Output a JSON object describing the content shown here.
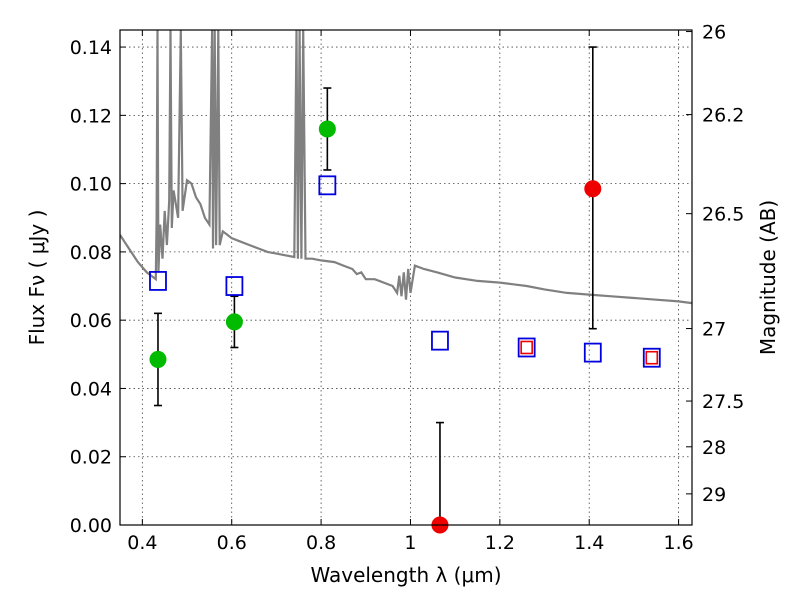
{
  "chart_data": {
    "type": "scatter",
    "title": "",
    "xlabel": "Wavelength  λ (μm)",
    "ylabel": "Flux  Fν  ( μJy )",
    "ylabel_right": "Magnitude (AB)",
    "xlim": [
      0.35,
      1.63
    ],
    "ylim": [
      0,
      0.145
    ],
    "grid": true,
    "legend": "none",
    "x_ticks": [
      {
        "value": 0.4,
        "label": "0.4"
      },
      {
        "value": 0.6,
        "label": "0.6"
      },
      {
        "value": 0.8,
        "label": "0.8"
      },
      {
        "value": 1.0,
        "label": "1"
      },
      {
        "value": 1.2,
        "label": "1.2"
      },
      {
        "value": 1.4,
        "label": "1.4"
      },
      {
        "value": 1.6,
        "label": "1.6"
      }
    ],
    "y_ticks": [
      {
        "value": 0.0,
        "label": "0.00"
      },
      {
        "value": 0.02,
        "label": "0.02"
      },
      {
        "value": 0.04,
        "label": "0.04"
      },
      {
        "value": 0.06,
        "label": "0.06"
      },
      {
        "value": 0.08,
        "label": "0.08"
      },
      {
        "value": 0.1,
        "label": "0.10"
      },
      {
        "value": 0.12,
        "label": "0.12"
      },
      {
        "value": 0.14,
        "label": "0.14"
      }
    ],
    "right_ticks": [
      {
        "label": "26",
        "mag": 26.0
      },
      {
        "label": "26.2",
        "mag": 26.2
      },
      {
        "label": "26.5",
        "mag": 26.5
      },
      {
        "label": "27",
        "mag": 27.0
      },
      {
        "label": "27.5",
        "mag": 27.5
      },
      {
        "label": "28",
        "mag": 28.0
      },
      {
        "label": "29",
        "mag": 29.0
      }
    ],
    "series": [
      {
        "marker": "circle",
        "color": "#00bb00",
        "points": [
          {
            "x": 0.435,
            "y": 0.0485,
            "ylo": 0.035,
            "yhi": 0.062
          },
          {
            "x": 0.606,
            "y": 0.0595,
            "ylo": 0.052,
            "yhi": 0.067
          },
          {
            "x": 0.814,
            "y": 0.116,
            "ylo": 0.104,
            "yhi": 0.128
          }
        ]
      },
      {
        "marker": "circle",
        "color": "#ee0000",
        "points": [
          {
            "x": 1.066,
            "y": 0.0,
            "ylo": 0.0,
            "yhi": 0.03
          },
          {
            "x": 1.408,
            "y": 0.0985,
            "ylo": 0.0575,
            "yhi": 0.14
          }
        ]
      },
      {
        "marker": "square-open",
        "color": "#0000dd",
        "points": [
          {
            "x": 0.435,
            "y": 0.0715
          },
          {
            "x": 0.606,
            "y": 0.07
          },
          {
            "x": 0.814,
            "y": 0.0995
          },
          {
            "x": 1.066,
            "y": 0.054
          },
          {
            "x": 1.26,
            "y": 0.052
          },
          {
            "x": 1.408,
            "y": 0.0505
          },
          {
            "x": 1.54,
            "y": 0.049
          }
        ]
      },
      {
        "marker": "square-open-small",
        "color": "#ee0000",
        "points": [
          {
            "x": 1.26,
            "y": 0.052
          },
          {
            "x": 1.54,
            "y": 0.049
          }
        ]
      },
      {
        "marker": "line",
        "color": "#808080",
        "points": [
          {
            "x": 0.35,
            "y": 0.085
          },
          {
            "x": 0.37,
            "y": 0.081
          },
          {
            "x": 0.39,
            "y": 0.077
          },
          {
            "x": 0.41,
            "y": 0.074
          },
          {
            "x": 0.42,
            "y": 0.073
          },
          {
            "x": 0.43,
            "y": 0.072
          },
          {
            "x": 0.432,
            "y": 0.09
          },
          {
            "x": 0.434,
            "y": 0.145
          },
          {
            "x": 0.436,
            "y": 0.074
          },
          {
            "x": 0.44,
            "y": 0.088
          },
          {
            "x": 0.445,
            "y": 0.078
          },
          {
            "x": 0.45,
            "y": 0.092
          },
          {
            "x": 0.455,
            "y": 0.082
          },
          {
            "x": 0.46,
            "y": 0.095
          },
          {
            "x": 0.463,
            "y": 0.145
          },
          {
            "x": 0.466,
            "y": 0.087
          },
          {
            "x": 0.47,
            "y": 0.098
          },
          {
            "x": 0.48,
            "y": 0.09
          },
          {
            "x": 0.486,
            "y": 0.145
          },
          {
            "x": 0.49,
            "y": 0.092
          },
          {
            "x": 0.5,
            "y": 0.101
          },
          {
            "x": 0.51,
            "y": 0.1
          },
          {
            "x": 0.52,
            "y": 0.096
          },
          {
            "x": 0.53,
            "y": 0.094
          },
          {
            "x": 0.54,
            "y": 0.09
          },
          {
            "x": 0.55,
            "y": 0.088
          },
          {
            "x": 0.556,
            "y": 0.145
          },
          {
            "x": 0.558,
            "y": 0.081
          },
          {
            "x": 0.562,
            "y": 0.145
          },
          {
            "x": 0.565,
            "y": 0.082
          },
          {
            "x": 0.57,
            "y": 0.145
          },
          {
            "x": 0.573,
            "y": 0.082
          },
          {
            "x": 0.58,
            "y": 0.086
          },
          {
            "x": 0.59,
            "y": 0.085
          },
          {
            "x": 0.6,
            "y": 0.084
          },
          {
            "x": 0.62,
            "y": 0.083
          },
          {
            "x": 0.64,
            "y": 0.082
          },
          {
            "x": 0.66,
            "y": 0.081
          },
          {
            "x": 0.68,
            "y": 0.08
          },
          {
            "x": 0.7,
            "y": 0.0795
          },
          {
            "x": 0.72,
            "y": 0.079
          },
          {
            "x": 0.74,
            "y": 0.0785
          },
          {
            "x": 0.745,
            "y": 0.145
          },
          {
            "x": 0.748,
            "y": 0.078
          },
          {
            "x": 0.752,
            "y": 0.145
          },
          {
            "x": 0.756,
            "y": 0.078
          },
          {
            "x": 0.76,
            "y": 0.145
          },
          {
            "x": 0.765,
            "y": 0.078
          },
          {
            "x": 0.78,
            "y": 0.078
          },
          {
            "x": 0.8,
            "y": 0.0775
          },
          {
            "x": 0.83,
            "y": 0.077
          },
          {
            "x": 0.85,
            "y": 0.076
          },
          {
            "x": 0.87,
            "y": 0.075
          },
          {
            "x": 0.88,
            "y": 0.0735
          },
          {
            "x": 0.89,
            "y": 0.074
          },
          {
            "x": 0.9,
            "y": 0.072
          },
          {
            "x": 0.92,
            "y": 0.072
          },
          {
            "x": 0.94,
            "y": 0.071
          },
          {
            "x": 0.96,
            "y": 0.07
          },
          {
            "x": 0.97,
            "y": 0.068
          },
          {
            "x": 0.975,
            "y": 0.073
          },
          {
            "x": 0.98,
            "y": 0.067
          },
          {
            "x": 0.985,
            "y": 0.074
          },
          {
            "x": 0.99,
            "y": 0.066
          },
          {
            "x": 0.995,
            "y": 0.075
          },
          {
            "x": 1.0,
            "y": 0.068
          },
          {
            "x": 1.01,
            "y": 0.076
          },
          {
            "x": 1.03,
            "y": 0.075
          },
          {
            "x": 1.06,
            "y": 0.074
          },
          {
            "x": 1.1,
            "y": 0.0725
          },
          {
            "x": 1.15,
            "y": 0.0715
          },
          {
            "x": 1.2,
            "y": 0.071
          },
          {
            "x": 1.23,
            "y": 0.0705
          },
          {
            "x": 1.26,
            "y": 0.07
          },
          {
            "x": 1.3,
            "y": 0.069
          },
          {
            "x": 1.35,
            "y": 0.068
          },
          {
            "x": 1.4,
            "y": 0.0675
          },
          {
            "x": 1.45,
            "y": 0.067
          },
          {
            "x": 1.5,
            "y": 0.0665
          },
          {
            "x": 1.55,
            "y": 0.066
          },
          {
            "x": 1.6,
            "y": 0.0655
          },
          {
            "x": 1.63,
            "y": 0.065
          }
        ]
      }
    ]
  }
}
